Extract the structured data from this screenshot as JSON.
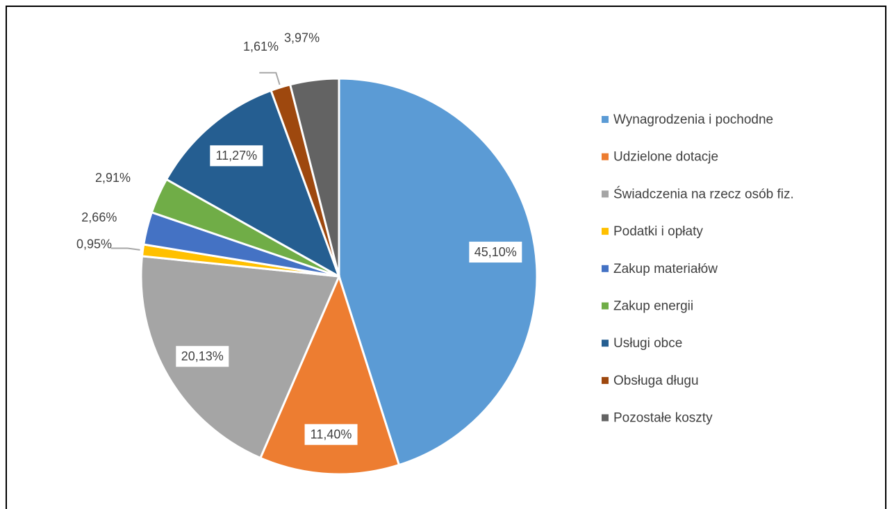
{
  "chart_data": {
    "type": "pie",
    "categories": [
      "Wynagrodzenia i pochodne",
      "Udzielone dotacje",
      "Świadczenia na rzecz osób fiz.",
      "Podatki i opłaty",
      "Zakup materiałów",
      "Zakup energii",
      "Usługi obce",
      "Obsługa długu",
      "Pozostałe koszty"
    ],
    "values": [
      45.1,
      11.4,
      20.13,
      0.95,
      2.66,
      2.91,
      11.27,
      1.61,
      3.97
    ],
    "value_labels": [
      "45,10%",
      "11,40%",
      "20,13%",
      "0,95%",
      "2,66%",
      "2,91%",
      "11,27%",
      "1,61%",
      "3,97%"
    ],
    "colors": [
      "#5b9bd5",
      "#ed7d31",
      "#a5a5a5",
      "#ffc000",
      "#4472c4",
      "#70ad47",
      "#255e91",
      "#9e480e",
      "#636363"
    ],
    "legend": "right"
  }
}
